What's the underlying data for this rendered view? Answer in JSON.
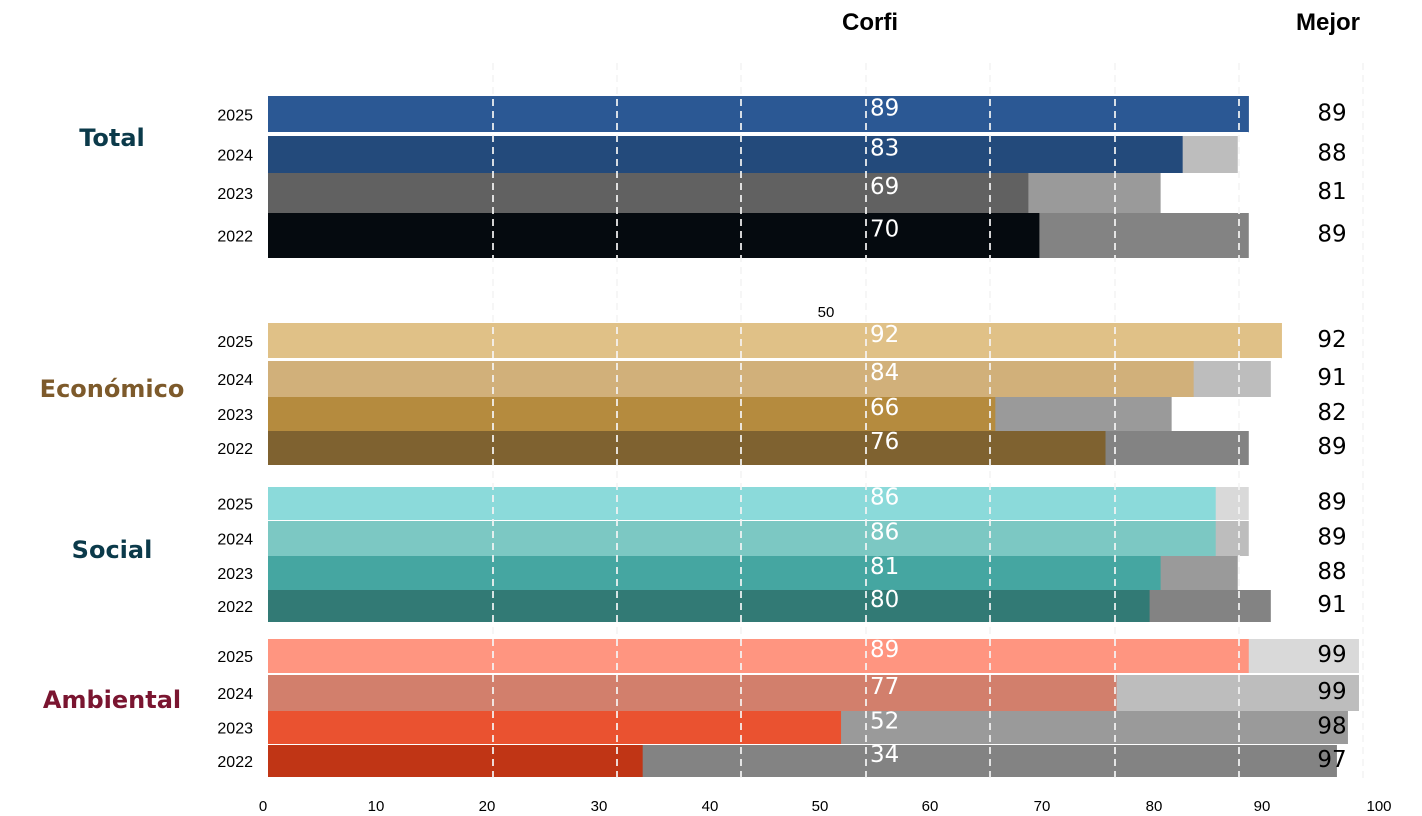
{
  "header": {
    "corfi_label": "Corfi",
    "mejor_label": "Mejor",
    "note_label": "50"
  },
  "chart_data": {
    "type": "bar",
    "orientation": "horizontal",
    "xlim": [
      0,
      100
    ],
    "x_ticks": [
      0,
      10,
      20,
      30,
      40,
      50,
      60,
      70,
      80,
      90,
      100
    ],
    "grid": "vertical dashed",
    "series_meaning": [
      "Corfi",
      "Mejor"
    ],
    "groups": [
      {
        "label": "Total",
        "label_color": "#0b3a4a",
        "rows": [
          {
            "year": "2025",
            "corfi": 89,
            "mejor": 89,
            "color": "#2b5894",
            "mejor_color": "#2b5894"
          },
          {
            "year": "2024",
            "corfi": 83,
            "mejor": 88,
            "color": "#234a7b",
            "mejor_color": "#bdbdbd"
          },
          {
            "year": "2023",
            "corfi": 69,
            "mejor": 81,
            "color": "#616161",
            "mejor_color": "#9a9a9a"
          },
          {
            "year": "2022",
            "corfi": 70,
            "mejor": 89,
            "color": "#050a0f",
            "mejor_color": "#838383"
          }
        ]
      },
      {
        "label": "Económico",
        "label_color": "#7d5a2b",
        "rows": [
          {
            "year": "2025",
            "corfi": 92,
            "mejor": 92,
            "color": "#e0c187",
            "mejor_color": "#e0c187"
          },
          {
            "year": "2024",
            "corfi": 84,
            "mejor": 91,
            "color": "#d1b07a",
            "mejor_color": "#bdbdbd"
          },
          {
            "year": "2023",
            "corfi": 66,
            "mejor": 82,
            "color": "#b58b3e",
            "mejor_color": "#9a9a9a"
          },
          {
            "year": "2022",
            "corfi": 76,
            "mejor": 89,
            "color": "#7f6230",
            "mejor_color": "#838383"
          }
        ]
      },
      {
        "label": "Social",
        "label_color": "#0b3a4a",
        "rows": [
          {
            "year": "2025",
            "corfi": 86,
            "mejor": 89,
            "color": "#8bdada",
            "mejor_color": "#d9d9d9"
          },
          {
            "year": "2024",
            "corfi": 86,
            "mejor": 89,
            "color": "#7cc8c3",
            "mejor_color": "#bdbdbd"
          },
          {
            "year": "2023",
            "corfi": 81,
            "mejor": 88,
            "color": "#45a6a1",
            "mejor_color": "#9a9a9a"
          },
          {
            "year": "2022",
            "corfi": 80,
            "mejor": 91,
            "color": "#327a75",
            "mejor_color": "#838383"
          }
        ]
      },
      {
        "label": "Ambiental",
        "label_color": "#7a1530",
        "rows": [
          {
            "year": "2025",
            "corfi": 89,
            "mejor": 99,
            "color": "#ff9580",
            "mejor_color": "#d9d9d9"
          },
          {
            "year": "2024",
            "corfi": 77,
            "mejor": 99,
            "color": "#d27f6c",
            "mejor_color": "#bdbdbd"
          },
          {
            "year": "2023",
            "corfi": 52,
            "mejor": 98,
            "color": "#ea5230",
            "mejor_color": "#9a9a9a"
          },
          {
            "year": "2022",
            "corfi": 34,
            "mejor": 97,
            "color": "#c03515",
            "mejor_color": "#838383"
          }
        ]
      }
    ]
  }
}
